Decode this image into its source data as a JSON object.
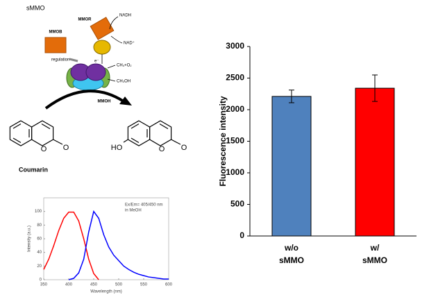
{
  "diagram": {
    "title": "sMMO",
    "mmob": "MMOB",
    "mmor": "MMOR",
    "nadh": "NADH",
    "nad": "NAD⁺",
    "regulation": "regulation",
    "electron": "e⁻",
    "substrate": "CH₄+O₂",
    "product": "CH₃OH",
    "mmoh": "MMOH",
    "ring_o_1": "O",
    "carbonyl_o_1": "O",
    "coumarin": "Coumarin",
    "hydroxyl": "HO",
    "ring_o_2": "O",
    "carbonyl_o_2": "O"
  },
  "chart_data": [
    {
      "type": "bar",
      "ylabel": "Fluorescence intensity",
      "categories": [
        [
          "w/o",
          "sMMO"
        ],
        [
          "w/",
          "sMMO"
        ]
      ],
      "values": [
        2210,
        2340
      ],
      "errors": [
        100,
        210
      ],
      "colors": [
        "#4f81bd",
        "#ff0000"
      ],
      "ylim": [
        0,
        3000
      ],
      "yticks": [
        0,
        500,
        1000,
        1500,
        2000,
        2500,
        3000
      ]
    },
    {
      "type": "line",
      "xlabel": "Wavelength (nm)",
      "ylabel": "Intensity (a.u.)",
      "annotation": [
        "Ex/Em= 405/450 nm",
        "in MeOH"
      ],
      "x": [
        350,
        360,
        370,
        380,
        390,
        400,
        410,
        420,
        430,
        440,
        450,
        460,
        470,
        480,
        490,
        500,
        510,
        520,
        530,
        540,
        550,
        560,
        570,
        580,
        590,
        600
      ],
      "series": [
        {
          "color": "#ff0000",
          "values": [
            15,
            30,
            50,
            72,
            90,
            99,
            99,
            86,
            60,
            30,
            9,
            0,
            null,
            null,
            null,
            null,
            null,
            null,
            null,
            null,
            null,
            null,
            null,
            null,
            null,
            null
          ]
        },
        {
          "color": "#0000ff",
          "values": [
            null,
            null,
            null,
            null,
            null,
            0,
            2,
            10,
            30,
            70,
            100,
            90,
            66,
            48,
            36,
            28,
            20,
            15,
            11,
            8,
            6,
            4,
            3,
            2,
            1,
            1
          ]
        }
      ],
      "xlim": [
        350,
        600
      ],
      "ylim": [
        0,
        120
      ],
      "xticks": [
        350,
        400,
        450,
        500,
        550,
        600
      ],
      "yticks": [
        0,
        20,
        40,
        60,
        80,
        100
      ]
    }
  ]
}
